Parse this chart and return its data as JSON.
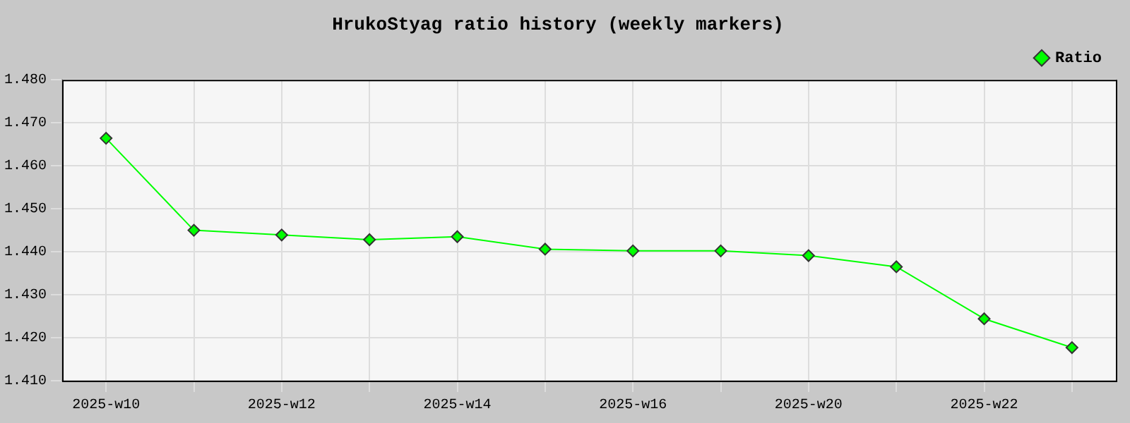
{
  "chart_data": {
    "type": "line",
    "title": "HrukoStyag ratio history (weekly markers)",
    "categories": [
      "2025-w10",
      null,
      "2025-w12",
      null,
      "2025-w14",
      null,
      "2025-w16",
      null,
      "2025-w20",
      null,
      "2025-w22",
      null
    ],
    "series": [
      {
        "name": "Ratio",
        "color": "#00ff00",
        "values": [
          1.4664,
          1.445,
          1.4439,
          1.4428,
          1.4435,
          1.4406,
          1.4402,
          1.4402,
          1.4391,
          1.4365,
          1.4244,
          1.4177
        ]
      }
    ],
    "ylim": [
      1.41,
      1.48
    ],
    "yticks": [
      {
        "value": 1.41,
        "label": "1.410"
      },
      {
        "value": 1.42,
        "label": "1.420"
      },
      {
        "value": 1.43,
        "label": "1.430"
      },
      {
        "value": 1.44,
        "label": "1.440"
      },
      {
        "value": 1.45,
        "label": "1.450"
      },
      {
        "value": 1.46,
        "label": "1.460"
      },
      {
        "value": 1.47,
        "label": "1.470"
      },
      {
        "value": 1.48,
        "label": "1.480"
      }
    ],
    "grid": true,
    "legend": "top right",
    "marker": "diamond",
    "line_style": "solid"
  }
}
